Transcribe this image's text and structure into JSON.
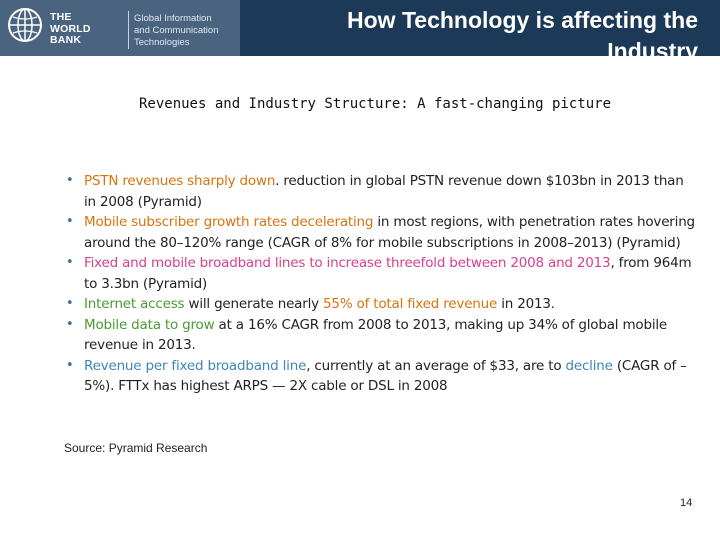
{
  "header": {
    "org_lines": [
      "THE",
      "WORLD",
      "BANK"
    ],
    "unit_lines": [
      "Global Information",
      "and Communication",
      "Technologies"
    ],
    "title": "How Technology is affecting the Industry"
  },
  "subtitle": "Revenues and Industry Structure: A fast-changing picture",
  "bullets": [
    {
      "highlight": "PSTN revenues sharply down",
      "rest": ". reduction in global PSTN revenue down $103bn in 2013 than in 2008 (Pyramid)"
    },
    {
      "highlight": "Mobile subscriber growth rates decelerating",
      "rest": " in most regions, with penetration rates hovering around the 80–120% range (CAGR of 8% for mobile subscriptions in 2008–2013) (Pyramid)"
    },
    {
      "highlight": "Fixed and mobile broadband lines to increase threefold between 2008 and 2013",
      "rest": ", from 964m to 3.3bn (Pyramid)"
    },
    {
      "highlight": "Internet access",
      "middle": " will generate nearly ",
      "highlight2": "55% of total fixed revenue",
      "rest": " in 2013."
    },
    {
      "highlight": "Mobile data to grow",
      "rest": " at a 16% CAGR from 2008 to 2013, making up 34% of global mobile revenue in 2013."
    },
    {
      "highlight": "Revenue per fixed broadband line",
      "middle": ", currently at an average of $33, are to ",
      "highlight2": "decline",
      "rest": " (CAGR of –5%). FTTx has highest ARPS — 2X cable or DSL in 2008"
    }
  ],
  "source": "Source: Pyramid Research",
  "page_number": "14",
  "colors": {
    "header_bg": "#1c3a57",
    "logo_bg": "#4a6480",
    "orange": "#d9730d",
    "pink": "#d6408e",
    "green": "#4a9a33",
    "blue": "#3f86b8"
  }
}
